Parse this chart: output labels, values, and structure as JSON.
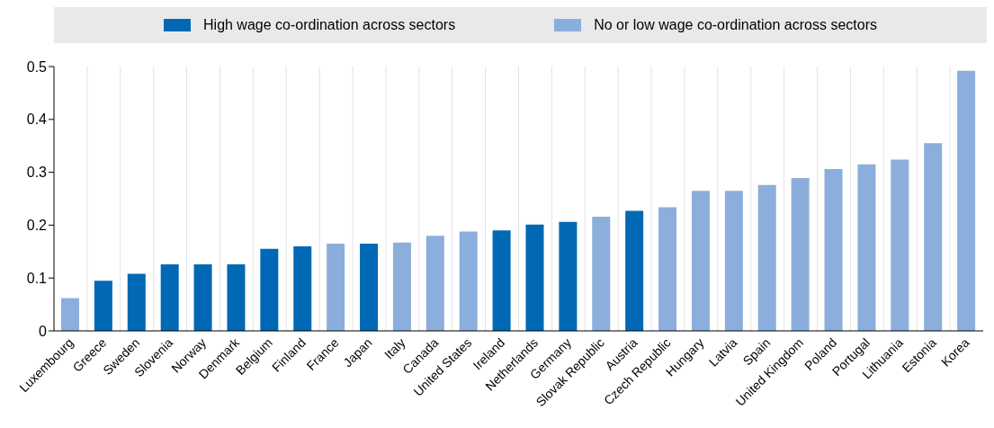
{
  "chart_data": {
    "type": "bar",
    "categories": [
      "Luxembourg",
      "Greece",
      "Sweden",
      "Slovenia",
      "Norway",
      "Denmark",
      "Belgium",
      "Finland",
      "France",
      "Japan",
      "Italy",
      "Canada",
      "United States",
      "Ireland",
      "Netherlands",
      "Germany",
      "Slovak Republic",
      "Austria",
      "Czech Republic",
      "Hungary",
      "Latvia",
      "Spain",
      "United Kingdom",
      "Poland",
      "Portugal",
      "Lithuania",
      "Estonia",
      "Korea"
    ],
    "series": [
      {
        "name": "High wage co-ordination across sectors",
        "color": "#0068b5",
        "values": [
          null,
          0.095,
          0.108,
          0.126,
          0.126,
          0.126,
          0.155,
          0.16,
          null,
          0.165,
          null,
          null,
          null,
          0.19,
          0.201,
          0.206,
          null,
          0.227,
          null,
          null,
          null,
          null,
          null,
          null,
          null,
          null,
          null,
          null
        ]
      },
      {
        "name": "No or low wage co-ordination across sectors",
        "color": "#8caedc",
        "values": [
          0.062,
          null,
          null,
          null,
          null,
          null,
          null,
          null,
          0.165,
          null,
          0.167,
          0.18,
          0.188,
          null,
          null,
          null,
          0.216,
          null,
          0.234,
          0.265,
          0.265,
          0.276,
          0.289,
          0.306,
          0.315,
          0.324,
          0.355,
          0.492
        ]
      }
    ],
    "ylim": [
      0,
      0.5
    ],
    "yticks": [
      0,
      0.1,
      0.2,
      0.3,
      0.4,
      0.5
    ],
    "grid": "x",
    "legend": "top"
  }
}
